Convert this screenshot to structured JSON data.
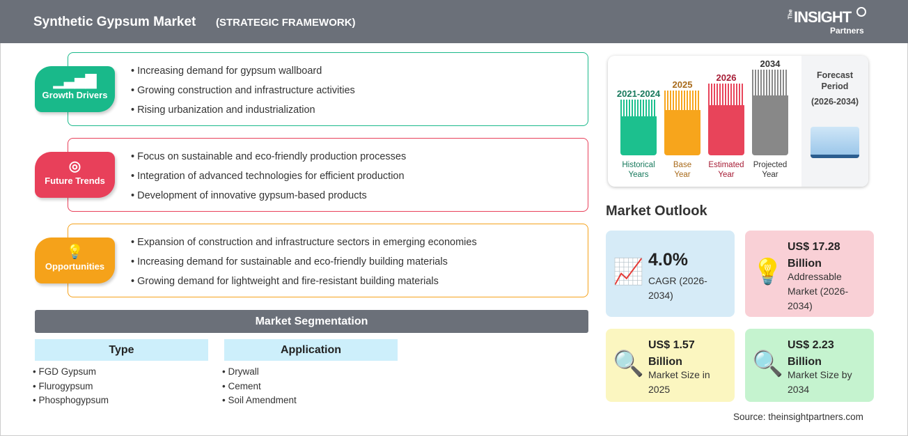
{
  "header": {
    "title": "Synthetic Gypsum Market",
    "subtitle": "(STRATEGIC FRAMEWORK)",
    "logo": "The INSIGHT Partners"
  },
  "sections": [
    {
      "label": "Growth Drivers",
      "icon": "growth-chart-icon",
      "color": "#19b98a",
      "items": [
        "Increasing demand for gypsum wallboard",
        "Growing construction and infrastructure activities",
        "Rising urbanization and industrialization"
      ]
    },
    {
      "label": "Future Trends",
      "icon": "target-icon",
      "color": "#e8405a",
      "items": [
        "Focus on sustainable and eco-friendly production processes",
        "Integration of advanced technologies for efficient production",
        "Development of innovative gypsum-based products"
      ]
    },
    {
      "label": "Opportunities",
      "icon": "lightbulb-hand-icon",
      "color": "#f5a21a",
      "items": [
        "Expansion of construction and infrastructure sectors in emerging economies",
        "Increasing demand for sustainable and eco-friendly building materials",
        "Growing demand for lightweight and fire-resistant building materials"
      ]
    }
  ],
  "segmentation": {
    "title": "Market Segmentation",
    "columns": [
      {
        "header": "Type",
        "items": [
          "FGD Gypsum",
          "Flurogypsum",
          "Phosphogypsum"
        ]
      },
      {
        "header": "Application",
        "items": [
          "Drywall",
          "Cement",
          "Soil Amendment"
        ]
      }
    ]
  },
  "timeline": {
    "periods": [
      {
        "year": "2021-2024",
        "label1": "Historical",
        "label2": "Years",
        "color": "#1cc08e",
        "text_color": "#17795c"
      },
      {
        "year": "2025",
        "label1": "Base",
        "label2": "Year",
        "color": "#f7a51c",
        "text_color": "#a86a1a"
      },
      {
        "year": "2026",
        "label1": "Estimated",
        "label2": "Year",
        "color": "#e8445a",
        "text_color": "#a61c35"
      },
      {
        "year": "2034",
        "label1": "Projected",
        "label2": "Year",
        "color": "#888888",
        "text_color": "#333333"
      }
    ],
    "forecast": {
      "l1": "Forecast",
      "l2": "Period",
      "l3": "(2026-2034)"
    }
  },
  "outlook": {
    "title": "Market Outlook",
    "cards": [
      {
        "value": "4.0%",
        "desc": "CAGR (2026-2034)",
        "bg": "#d6ebf7",
        "icon": "growth-chart-icon"
      },
      {
        "value": "US$ 17.28 Billion",
        "desc": "Addressable Market (2026-2034)",
        "bg": "#f9d0d6",
        "icon": "dollar-bulb-icon"
      },
      {
        "value": "US$ 1.57 Billion",
        "desc": "Market Size in 2025",
        "bg": "#fbf6c0",
        "icon": "magnifier-chart-icon"
      },
      {
        "value": "US$ 2.23 Billion",
        "desc": "Market Size by 2034",
        "bg": "#c5f3cf",
        "icon": "magnifier-chart-icon"
      }
    ]
  },
  "source": "Source: theinsightpartners.com"
}
